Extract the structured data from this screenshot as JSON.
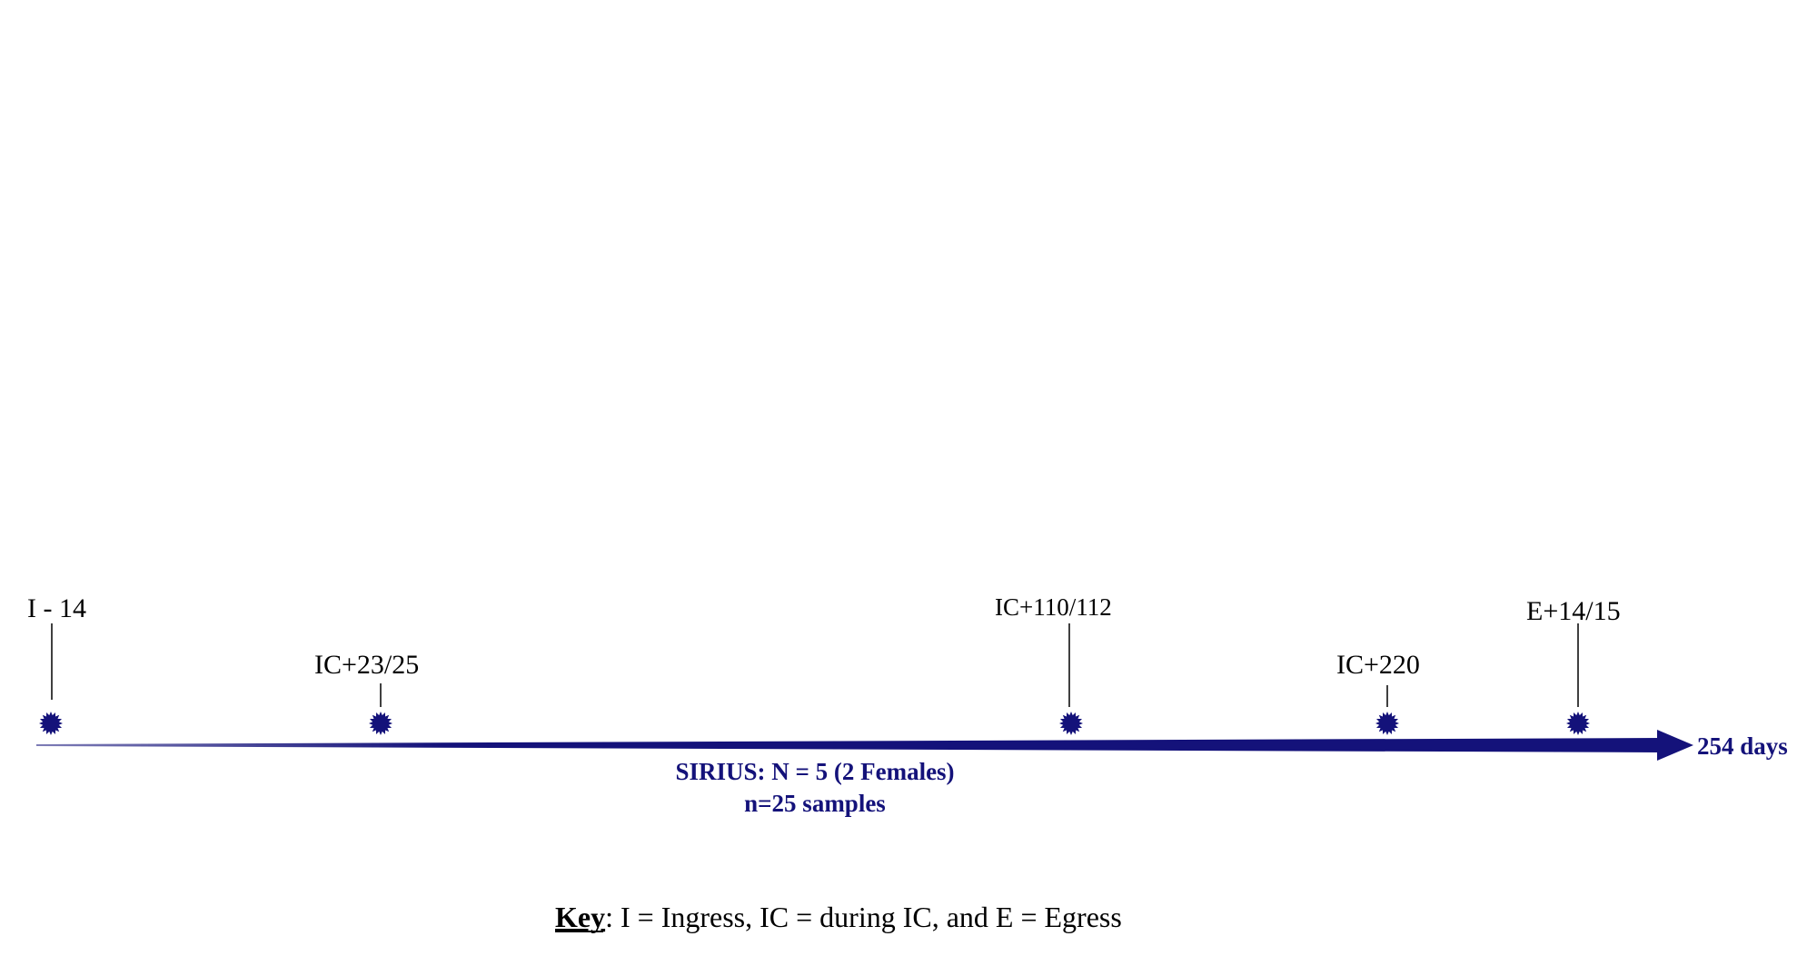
{
  "colors": {
    "accent": "#14127a",
    "text": "#000000",
    "background": "#ffffff"
  },
  "timeline": {
    "end_label": "254 days",
    "study_name": "SIRIUS: N = 5 (2 Females)",
    "samples": "n=25 samples",
    "timepoints": [
      {
        "label": "I - 14"
      },
      {
        "label": "IC+23/25"
      },
      {
        "label": "IC+110/112"
      },
      {
        "label": "IC+220"
      },
      {
        "label": "E+14/15"
      }
    ]
  },
  "key": {
    "heading": "Key",
    "text": ": I = Ingress, IC = during IC, and E = Egress"
  }
}
